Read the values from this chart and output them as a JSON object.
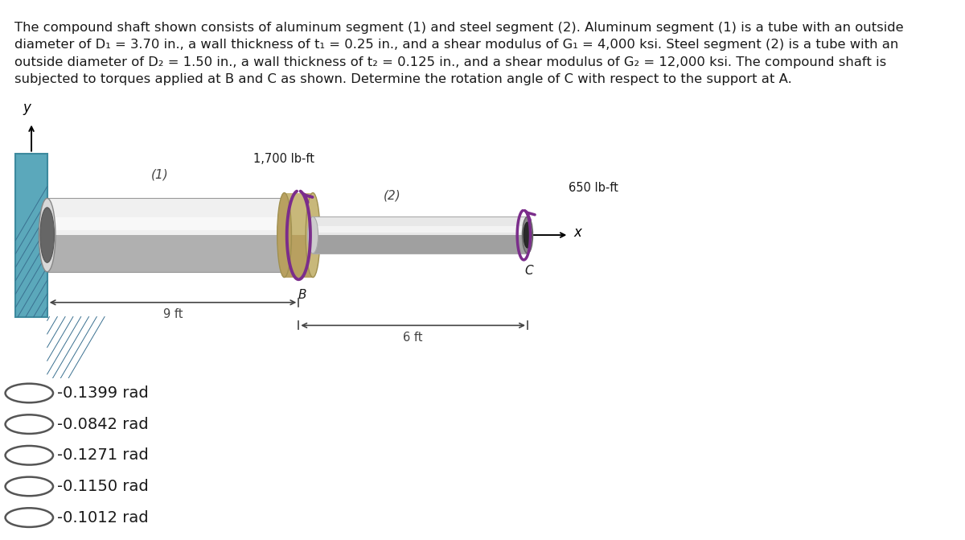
{
  "title_line1": "The compound shaft shown consists of aluminum segment (1) and steel segment (2). Aluminum segment (1) is a tube with an outside",
  "title_line2": "diameter of D₁ = 3.70 in., a wall thickness of t₁ = 0.25 in., and a shear modulus of G₁ = 4,000 ksi. Steel segment (2) is a tube with an",
  "title_line3": "outside diameter of D₂ = 1.50 in., a wall thickness of t₂ = 0.125 in., and a shear modulus of G₂ = 12,000 ksi. The compound shaft is",
  "title_line4": "subjected to torques applied at B and C as shown. Determine the rotation angle of C with respect to the support at A.",
  "choices": [
    "-0.1399 rad",
    "-0.0842 rad",
    "-0.1271 rad",
    "-0.1150 rad",
    "-0.1012 rad"
  ],
  "bg_color": "#ffffff",
  "text_color": "#1a1a1a",
  "wall_color": "#5ba8bb",
  "wall_edge_color": "#3d8a9e",
  "shaft1_light": "#f0f0f0",
  "shaft1_mid": "#d8d8d8",
  "shaft1_dark": "#b0b0b0",
  "shaft2_light": "#e8e8e8",
  "shaft2_mid": "#cccccc",
  "shaft2_dark": "#a0a0a0",
  "torque_color": "#7b2d8b",
  "connector_color": "#c8b87a",
  "connector_edge": "#a09050",
  "dim_color": "#444444",
  "label_color": "#444444",
  "title_fontsize": 11.8,
  "choice_fontsize": 14,
  "label_fontsize": 12
}
